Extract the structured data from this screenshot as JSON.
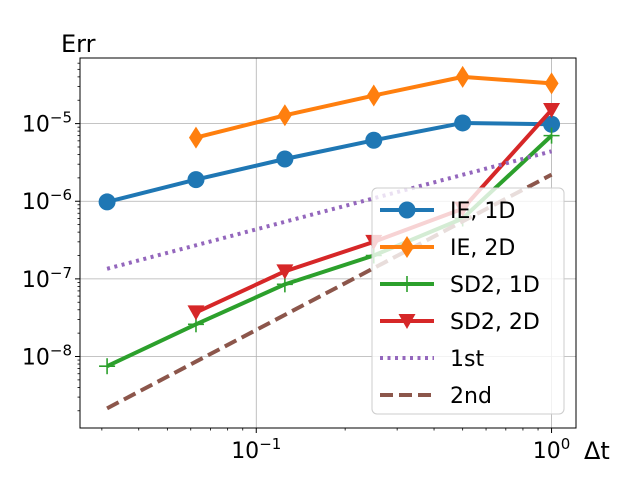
{
  "chart_data": {
    "type": "line",
    "title": "Err",
    "xlabel": "Δt",
    "ylabel": "",
    "xscale": "log",
    "yscale": "log",
    "xlim": [
      0.0253,
      1.21
    ],
    "ylim": [
      1.2e-09,
      7e-05
    ],
    "grid": true,
    "legend_position": "center-right",
    "x_ticks": [
      {
        "value": 0.1,
        "base": "10",
        "exp": "−1"
      },
      {
        "value": 1,
        "base": "10",
        "exp": "0"
      }
    ],
    "y_ticks": [
      {
        "value": 1e-08,
        "base": "10",
        "exp": "−8"
      },
      {
        "value": 1e-07,
        "base": "10",
        "exp": "−7"
      },
      {
        "value": 1e-06,
        "base": "10",
        "exp": "−6"
      },
      {
        "value": 1e-05,
        "base": "10",
        "exp": "−5"
      }
    ],
    "series": [
      {
        "name": "IE, 1D",
        "color": "#1f77b4",
        "marker": "circle",
        "dash": "solid",
        "x": [
          0.03125,
          0.0625,
          0.125,
          0.25,
          0.5,
          1.0
        ],
        "y": [
          9.8e-07,
          1.9e-06,
          3.5e-06,
          6.1e-06,
          1.02e-05,
          9.8e-06
        ]
      },
      {
        "name": "IE, 2D",
        "color": "#ff7f0e",
        "marker": "diamond",
        "dash": "solid",
        "x": [
          0.0625,
          0.125,
          0.25,
          0.5,
          1.0
        ],
        "y": [
          6.6e-06,
          1.28e-05,
          2.3e-05,
          4e-05,
          3.3e-05
        ]
      },
      {
        "name": "SD2, 1D",
        "color": "#2ca02c",
        "marker": "plus",
        "dash": "solid",
        "x": [
          0.03125,
          0.0625,
          0.125,
          0.25,
          0.5,
          1.0
        ],
        "y": [
          7.5e-09,
          2.6e-08,
          8.5e-08,
          2e-07,
          6e-07,
          7e-06
        ]
      },
      {
        "name": "SD2, 2D",
        "color": "#d62728",
        "marker": "triangle-down",
        "dash": "solid",
        "x": [
          0.0625,
          0.125,
          0.25,
          0.5,
          1.0
        ],
        "y": [
          3.7e-08,
          1.25e-07,
          3e-07,
          8e-07,
          1.5e-05
        ]
      },
      {
        "name": "1st",
        "color": "#9467bd",
        "marker": "none",
        "dash": "dotted",
        "x": [
          0.03125,
          1.0
        ],
        "y": [
          1.35e-07,
          4.4e-06
        ]
      },
      {
        "name": "2nd",
        "color": "#8c564b",
        "marker": "none",
        "dash": "dashed",
        "x": [
          0.03125,
          1.0
        ],
        "y": [
          2.15e-09,
          2.2e-06
        ]
      }
    ]
  }
}
